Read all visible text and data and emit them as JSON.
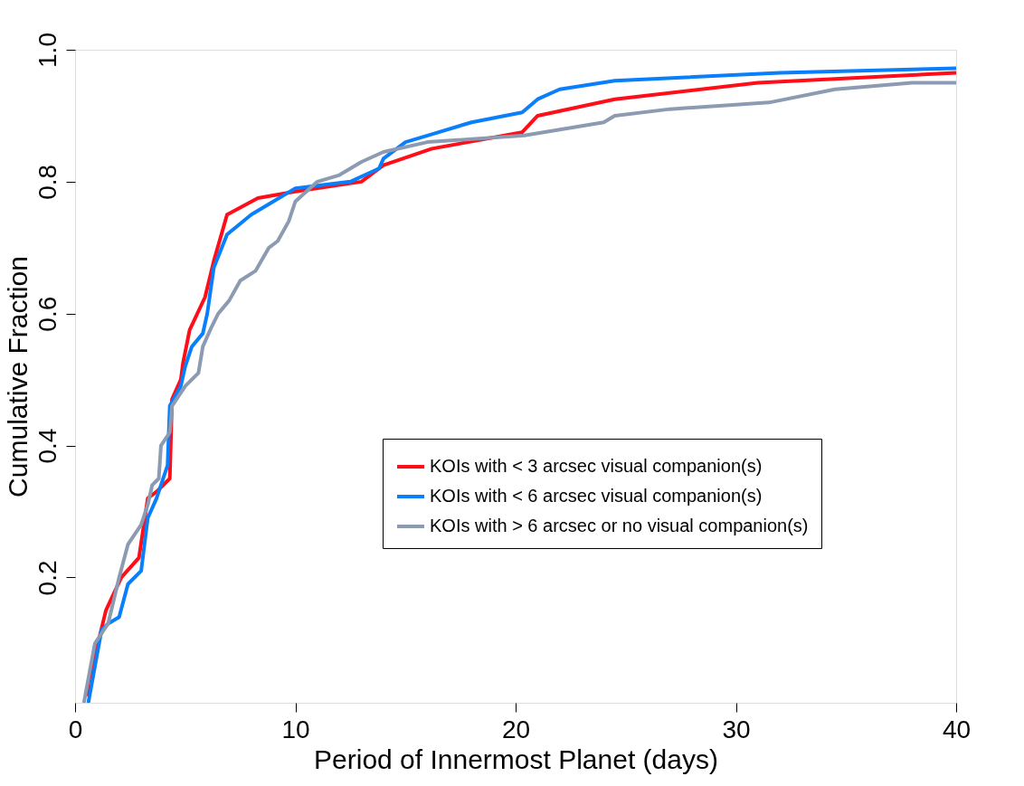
{
  "chart_data": {
    "type": "line",
    "xlabel": "Period of Innermost Planet (days)",
    "ylabel": "Cumulative Fraction",
    "xlim": [
      0,
      40
    ],
    "ylim": [
      0.01,
      1.0
    ],
    "xticks": [
      0,
      10,
      20,
      30,
      40
    ],
    "yticks": [
      0.2,
      0.4,
      0.6,
      0.8,
      {
        "value": 1.0,
        "label": "1.0"
      }
    ],
    "grid": false,
    "legend": "bottom right",
    "marker": "none",
    "line_style": "solid",
    "series": [
      {
        "name": "KOIs with < 3 arcsec visual companion(s)",
        "color": "#ff0d18",
        "x": [
          0.6,
          0.6,
          1.4,
          2.1,
          2.9,
          3.3,
          3.7,
          4.3,
          4.4,
          4.8,
          4.9,
          5.2,
          5.9,
          6.3,
          6.9,
          8.3,
          10,
          13,
          14,
          16.2,
          20.3,
          21,
          24.5,
          31,
          40
        ],
        "values": [
          0.02,
          0.04,
          0.15,
          0.2,
          0.23,
          0.32,
          0.33,
          0.35,
          0.47,
          0.5,
          0.525,
          0.575,
          0.625,
          0.68,
          0.75,
          0.775,
          0.785,
          0.8,
          0.825,
          0.85,
          0.875,
          0.9,
          0.925,
          0.95,
          0.965
        ]
      },
      {
        "name": "KOIs with < 6 arcsec visual companion(s)",
        "color": "#0a7ffb",
        "x": [
          0.6,
          1.2,
          1.5,
          2,
          2.4,
          3,
          3.3,
          3.7,
          4.2,
          4.3,
          4.8,
          5,
          5.3,
          5.8,
          6,
          6.3,
          6.9,
          8,
          9,
          10,
          12.5,
          13.8,
          14,
          15,
          16,
          18,
          20.3,
          21,
          22,
          24.5,
          32,
          40
        ],
        "values": [
          0.01,
          0.12,
          0.13,
          0.14,
          0.19,
          0.21,
          0.29,
          0.32,
          0.37,
          0.46,
          0.49,
          0.52,
          0.55,
          0.57,
          0.6,
          0.67,
          0.72,
          0.75,
          0.77,
          0.79,
          0.8,
          0.82,
          0.835,
          0.86,
          0.87,
          0.89,
          0.905,
          0.925,
          0.94,
          0.953,
          0.965,
          0.972
        ]
      },
      {
        "name": "KOIs with > 6 arcsec or no visual companion(s)",
        "color": "#8c9bb1",
        "x": [
          0.4,
          0.9,
          1.5,
          2,
          2.4,
          3,
          3.3,
          3.5,
          3.8,
          3.9,
          4.3,
          4.4,
          5,
          5.6,
          5.8,
          6.2,
          6.5,
          7,
          7.5,
          8.2,
          8.8,
          9.2,
          9.7,
          10,
          10.5,
          11,
          12,
          13,
          14,
          16,
          20.4,
          24,
          24.5,
          27,
          31.5,
          34.5,
          38,
          40
        ],
        "values": [
          0.01,
          0.1,
          0.13,
          0.2,
          0.25,
          0.28,
          0.31,
          0.34,
          0.35,
          0.4,
          0.42,
          0.46,
          0.49,
          0.51,
          0.55,
          0.58,
          0.6,
          0.62,
          0.65,
          0.665,
          0.7,
          0.71,
          0.74,
          0.77,
          0.785,
          0.8,
          0.81,
          0.83,
          0.845,
          0.86,
          0.87,
          0.89,
          0.9,
          0.91,
          0.92,
          0.94,
          0.95,
          0.95
        ]
      }
    ]
  }
}
